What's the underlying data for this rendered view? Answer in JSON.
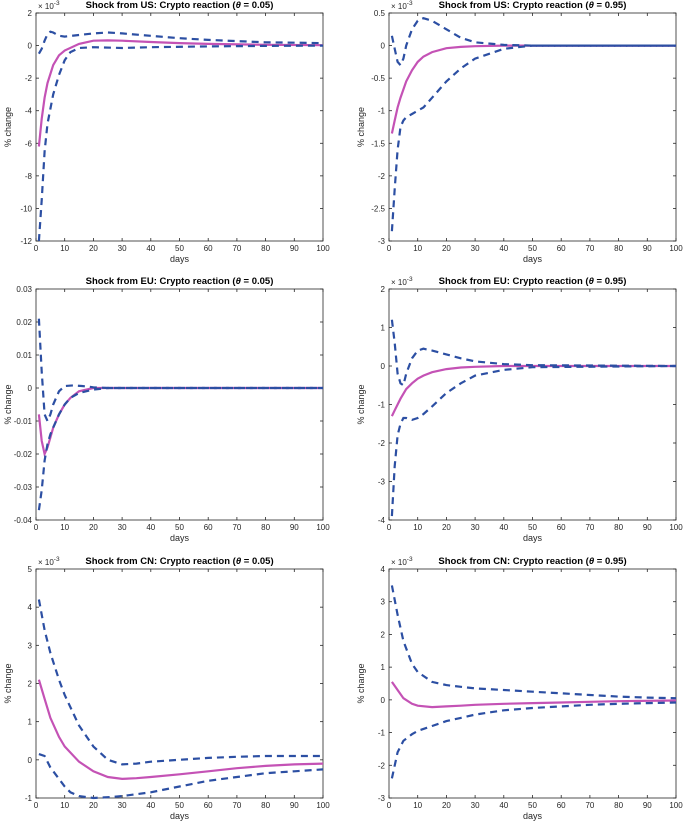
{
  "figure": {
    "xlabel": "days",
    "ylabel": "% change",
    "colors": {
      "median": "#c452b5",
      "band": "#2c4fa3",
      "axis": "#262626"
    }
  },
  "chart_data": [
    {
      "type": "line",
      "title_prefix": "Shock from US: Crypto reaction (",
      "title_theta": "θ",
      "title_suffix": " = 0.05)",
      "xlabel": "days",
      "ylabel": "% change",
      "exponent": "× 10",
      "exponent_power": "-3",
      "xlim": [
        0,
        100
      ],
      "ylim": [
        -12,
        2
      ],
      "xticks": [
        0,
        10,
        20,
        30,
        40,
        50,
        60,
        70,
        80,
        90,
        100
      ],
      "yticks": [
        -12,
        -10,
        -8,
        -6,
        -4,
        -2,
        0,
        2
      ],
      "series": [
        {
          "name": "median",
          "style": "solid",
          "x": [
            1,
            2,
            3,
            4,
            6,
            8,
            10,
            15,
            20,
            25,
            30,
            40,
            50,
            60,
            80,
            100
          ],
          "y": [
            -6.2,
            -4.5,
            -3.2,
            -2.3,
            -1.2,
            -0.6,
            -0.3,
            0.1,
            0.3,
            0.32,
            0.3,
            0.22,
            0.15,
            0.1,
            0.05,
            0.02
          ]
        },
        {
          "name": "upper",
          "style": "dashed",
          "x": [
            1,
            2,
            3,
            4,
            5,
            6,
            8,
            10,
            15,
            20,
            25,
            30,
            40,
            50,
            60,
            80,
            100
          ],
          "y": [
            -0.5,
            -0.2,
            0.3,
            0.7,
            0.85,
            0.8,
            0.6,
            0.55,
            0.65,
            0.75,
            0.8,
            0.75,
            0.6,
            0.45,
            0.35,
            0.2,
            0.15
          ]
        },
        {
          "name": "lower",
          "style": "dashed",
          "x": [
            1,
            2,
            3,
            4,
            6,
            8,
            10,
            12,
            15,
            20,
            30,
            40,
            60,
            80,
            100
          ],
          "y": [
            -12,
            -9.5,
            -6.5,
            -4.8,
            -3,
            -1.8,
            -0.9,
            -0.4,
            -0.15,
            -0.1,
            -0.15,
            -0.1,
            -0.05,
            -0.02,
            0
          ]
        }
      ]
    },
    {
      "type": "line",
      "title_prefix": "Shock from US: Crypto reaction (",
      "title_theta": "θ",
      "title_suffix": " = 0.95)",
      "xlabel": "days",
      "ylabel": "% change",
      "exponent": "× 10",
      "exponent_power": "-3",
      "xlim": [
        0,
        100
      ],
      "ylim": [
        -3,
        0.5
      ],
      "xticks": [
        0,
        10,
        20,
        30,
        40,
        50,
        60,
        70,
        80,
        90,
        100
      ],
      "yticks": [
        -3,
        -2.5,
        -2,
        -1.5,
        -1,
        -0.5,
        0,
        0.5
      ],
      "series": [
        {
          "name": "median",
          "style": "solid",
          "x": [
            1,
            2,
            3,
            4,
            6,
            8,
            10,
            12,
            15,
            20,
            25,
            30,
            40,
            50,
            100
          ],
          "y": [
            -1.35,
            -1.15,
            -0.95,
            -0.8,
            -0.55,
            -0.38,
            -0.25,
            -0.17,
            -0.1,
            -0.04,
            -0.02,
            -0.01,
            0,
            0,
            0
          ]
        },
        {
          "name": "upper",
          "style": "dashed",
          "x": [
            1,
            2,
            3,
            4,
            5,
            6,
            8,
            10,
            12,
            15,
            20,
            25,
            30,
            40,
            50,
            100
          ],
          "y": [
            0.15,
            -0.05,
            -0.25,
            -0.3,
            -0.2,
            0,
            0.25,
            0.38,
            0.42,
            0.38,
            0.25,
            0.12,
            0.05,
            0.01,
            0,
            0
          ]
        },
        {
          "name": "lower",
          "style": "dashed",
          "x": [
            1,
            2,
            3,
            4,
            5,
            6,
            8,
            10,
            12,
            15,
            18,
            20,
            25,
            30,
            40,
            50,
            100
          ],
          "y": [
            -2.85,
            -2.2,
            -1.6,
            -1.25,
            -1.15,
            -1.1,
            -1.05,
            -1,
            -0.95,
            -0.8,
            -0.65,
            -0.55,
            -0.35,
            -0.2,
            -0.05,
            0,
            0
          ]
        }
      ]
    },
    {
      "type": "line",
      "title_prefix": "Shock from EU: Crypto reaction (",
      "title_theta": "θ",
      "title_suffix": " = 0.05)",
      "xlabel": "days",
      "ylabel": "% change",
      "exponent": "",
      "exponent_power": "",
      "xlim": [
        0,
        100
      ],
      "ylim": [
        -0.04,
        0.03
      ],
      "xticks": [
        0,
        10,
        20,
        30,
        40,
        50,
        60,
        70,
        80,
        90,
        100
      ],
      "yticks": [
        -0.04,
        -0.03,
        -0.02,
        -0.01,
        0,
        0.01,
        0.02,
        0.03
      ],
      "series": [
        {
          "name": "median",
          "style": "solid",
          "x": [
            1,
            2,
            3,
            4,
            5,
            6,
            8,
            10,
            12,
            15,
            20,
            25,
            30,
            100
          ],
          "y": [
            -0.008,
            -0.016,
            -0.02,
            -0.018,
            -0.015,
            -0.012,
            -0.008,
            -0.005,
            -0.003,
            -0.001,
            0,
            0,
            0,
            0
          ]
        },
        {
          "name": "upper",
          "style": "dashed",
          "x": [
            1,
            2,
            3,
            4,
            5,
            6,
            8,
            10,
            13,
            16,
            20,
            25,
            30,
            100
          ],
          "y": [
            0.021,
            0.005,
            -0.008,
            -0.01,
            -0.008,
            -0.005,
            -0.001,
            0.0006,
            0.0008,
            0.0006,
            0.0002,
            0,
            0,
            0
          ]
        },
        {
          "name": "lower",
          "style": "dashed",
          "x": [
            1,
            2,
            3,
            4,
            5,
            6,
            8,
            10,
            12,
            15,
            20,
            25,
            30,
            100
          ],
          "y": [
            -0.037,
            -0.031,
            -0.022,
            -0.017,
            -0.014,
            -0.012,
            -0.008,
            -0.005,
            -0.003,
            -0.0015,
            -0.0005,
            0,
            0,
            0
          ]
        }
      ]
    },
    {
      "type": "line",
      "title_prefix": "Shock from EU: Crypto reaction (",
      "title_theta": "θ",
      "title_suffix": " = 0.95)",
      "xlabel": "days",
      "ylabel": "% change",
      "exponent": "× 10",
      "exponent_power": "-3",
      "xlim": [
        0,
        100
      ],
      "ylim": [
        -4,
        2
      ],
      "xticks": [
        0,
        10,
        20,
        30,
        40,
        50,
        60,
        70,
        80,
        90,
        100
      ],
      "yticks": [
        -4,
        -3,
        -2,
        -1,
        0,
        1,
        2
      ],
      "series": [
        {
          "name": "median",
          "style": "solid",
          "x": [
            1,
            2,
            3,
            4,
            6,
            8,
            10,
            12,
            15,
            20,
            25,
            30,
            40,
            50,
            100
          ],
          "y": [
            -1.3,
            -1.15,
            -1,
            -0.85,
            -0.6,
            -0.45,
            -0.33,
            -0.25,
            -0.16,
            -0.08,
            -0.04,
            -0.02,
            0,
            0,
            0
          ]
        },
        {
          "name": "upper",
          "style": "dashed",
          "x": [
            1,
            2,
            3,
            4,
            5,
            6,
            8,
            10,
            12,
            15,
            20,
            25,
            30,
            40,
            50,
            100
          ],
          "y": [
            1.2,
            0.6,
            -0.2,
            -0.45,
            -0.5,
            -0.2,
            0.2,
            0.4,
            0.45,
            0.4,
            0.3,
            0.2,
            0.12,
            0.05,
            0.02,
            0
          ]
        },
        {
          "name": "lower",
          "style": "dashed",
          "x": [
            1,
            2,
            3,
            4,
            5,
            6,
            8,
            10,
            12,
            15,
            20,
            25,
            30,
            40,
            50,
            100
          ],
          "y": [
            -3.9,
            -2.6,
            -1.8,
            -1.5,
            -1.35,
            -1.35,
            -1.4,
            -1.35,
            -1.25,
            -1.05,
            -0.7,
            -0.45,
            -0.25,
            -0.1,
            -0.03,
            0
          ]
        }
      ]
    },
    {
      "type": "line",
      "title_prefix": "Shock from CN: Crypto reaction (",
      "title_theta": "θ",
      "title_suffix": " = 0.05)",
      "xlabel": "days",
      "ylabel": "% change",
      "exponent": "× 10",
      "exponent_power": "-3",
      "xlim": [
        0,
        100
      ],
      "ylim": [
        -1,
        5
      ],
      "xticks": [
        0,
        10,
        20,
        30,
        40,
        50,
        60,
        70,
        80,
        90,
        100
      ],
      "yticks": [
        -1,
        0,
        1,
        2,
        3,
        4,
        5
      ],
      "series": [
        {
          "name": "median",
          "style": "solid",
          "x": [
            1,
            3,
            5,
            8,
            10,
            15,
            20,
            25,
            30,
            35,
            40,
            50,
            60,
            70,
            80,
            90,
            100
          ],
          "y": [
            2.1,
            1.6,
            1.1,
            0.6,
            0.35,
            -0.05,
            -0.3,
            -0.45,
            -0.5,
            -0.48,
            -0.45,
            -0.38,
            -0.3,
            -0.22,
            -0.16,
            -0.12,
            -0.1
          ]
        },
        {
          "name": "upper",
          "style": "dashed",
          "x": [
            1,
            3,
            5,
            8,
            10,
            15,
            20,
            25,
            30,
            35,
            40,
            50,
            60,
            70,
            80,
            90,
            100
          ],
          "y": [
            4.2,
            3.4,
            2.8,
            2.1,
            1.7,
            0.9,
            0.35,
            0.0,
            -0.12,
            -0.1,
            -0.05,
            0.0,
            0.05,
            0.08,
            0.1,
            0.1,
            0.1
          ]
        },
        {
          "name": "lower",
          "style": "dashed",
          "x": [
            1,
            3,
            5,
            8,
            10,
            12,
            15,
            20,
            25,
            30,
            40,
            50,
            60,
            70,
            80,
            90,
            100
          ],
          "y": [
            0.15,
            0.1,
            -0.2,
            -0.5,
            -0.7,
            -0.85,
            -0.95,
            -1.0,
            -0.98,
            -0.95,
            -0.85,
            -0.7,
            -0.55,
            -0.45,
            -0.35,
            -0.3,
            -0.25
          ]
        }
      ]
    },
    {
      "type": "line",
      "title_prefix": "Shock from CN: Crypto reaction (",
      "title_theta": "θ",
      "title_suffix": " = 0.95)",
      "xlabel": "days",
      "ylabel": "% change",
      "exponent": "× 10",
      "exponent_power": "-3",
      "xlim": [
        0,
        100
      ],
      "ylim": [
        -3,
        4
      ],
      "xticks": [
        0,
        10,
        20,
        30,
        40,
        50,
        60,
        70,
        80,
        90,
        100
      ],
      "yticks": [
        -3,
        -2,
        -1,
        0,
        1,
        2,
        3,
        4
      ],
      "series": [
        {
          "name": "median",
          "style": "solid",
          "x": [
            1,
            3,
            5,
            8,
            10,
            15,
            20,
            25,
            30,
            40,
            50,
            60,
            70,
            80,
            90,
            100
          ],
          "y": [
            0.55,
            0.3,
            0.05,
            -0.12,
            -0.18,
            -0.22,
            -0.2,
            -0.18,
            -0.15,
            -0.12,
            -0.1,
            -0.08,
            -0.06,
            -0.04,
            -0.03,
            -0.02
          ]
        },
        {
          "name": "upper",
          "style": "dashed",
          "x": [
            1,
            3,
            5,
            8,
            10,
            15,
            20,
            25,
            30,
            40,
            50,
            60,
            70,
            80,
            90,
            100
          ],
          "y": [
            3.5,
            2.6,
            1.8,
            1.1,
            0.85,
            0.55,
            0.45,
            0.4,
            0.35,
            0.3,
            0.25,
            0.2,
            0.15,
            0.1,
            0.07,
            0.05
          ]
        },
        {
          "name": "lower",
          "style": "dashed",
          "x": [
            1,
            3,
            5,
            8,
            10,
            15,
            20,
            25,
            30,
            40,
            50,
            60,
            70,
            80,
            90,
            100
          ],
          "y": [
            -2.4,
            -1.6,
            -1.25,
            -1.05,
            -0.95,
            -0.8,
            -0.65,
            -0.55,
            -0.45,
            -0.32,
            -0.25,
            -0.2,
            -0.15,
            -0.12,
            -0.1,
            -0.08
          ]
        }
      ]
    }
  ]
}
